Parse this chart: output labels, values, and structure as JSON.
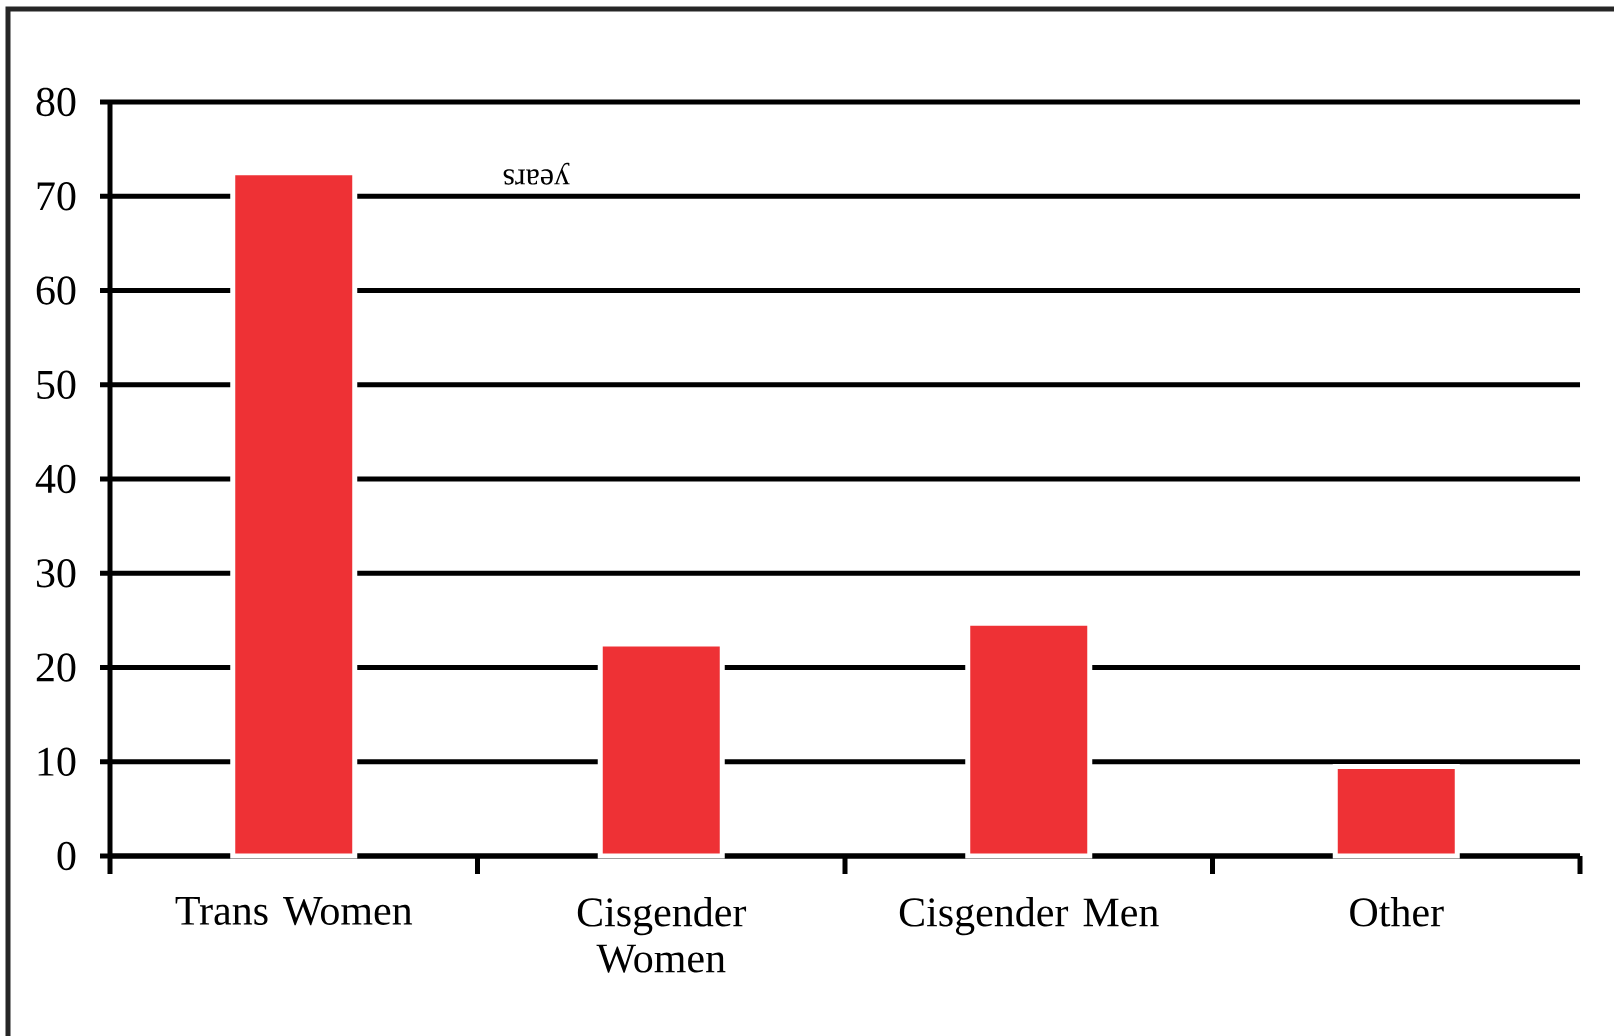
{
  "chart_data": {
    "type": "bar",
    "categories": [
      "Trans Women",
      "Cisgender Women",
      "Cisgender Men",
      "Other"
    ],
    "values": [
      72.5,
      22.5,
      24.7,
      9.5
    ],
    "color": "#ee3135",
    "ylim": [
      0,
      80
    ],
    "yticks": [
      0,
      10,
      20,
      30,
      40,
      50,
      60,
      70,
      80
    ],
    "grid": "y",
    "annotations": [
      "years"
    ]
  }
}
